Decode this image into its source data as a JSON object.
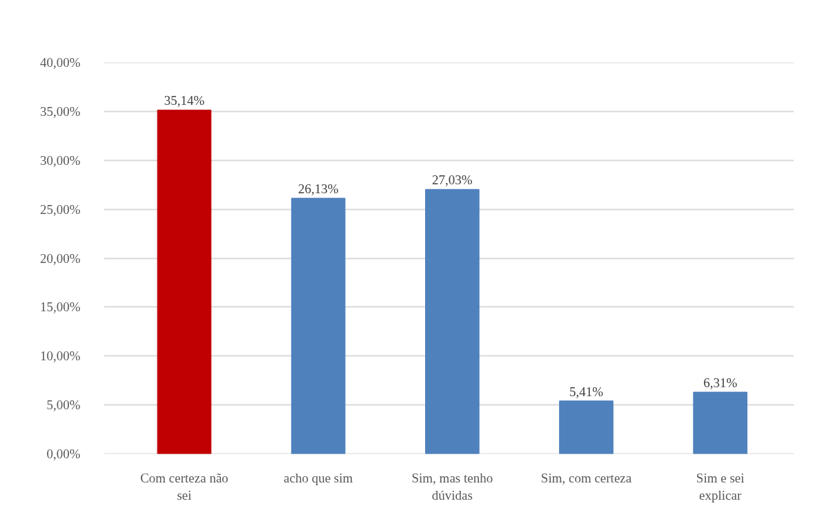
{
  "chart_data": {
    "type": "bar",
    "categories": [
      "Com certeza não sei",
      "acho que sim",
      "Sim, mas tenho dúvidas",
      "Sim, com certeza",
      "Sim e sei explicar"
    ],
    "values": [
      35.14,
      26.13,
      27.03,
      5.41,
      6.31
    ],
    "colors": [
      "#c00000",
      "#4f81bd",
      "#4f81bd",
      "#4f81bd",
      "#4f81bd"
    ],
    "value_labels": [
      "35,14%",
      "26,13%",
      "27,03%",
      "5,41%",
      "6,31%"
    ],
    "ylim": [
      0,
      40
    ],
    "yticks": [
      {
        "value": 0,
        "label": "0,00%"
      },
      {
        "value": 5,
        "label": "5,00%"
      },
      {
        "value": 10,
        "label": "10,00%"
      },
      {
        "value": 15,
        "label": "15,00%"
      },
      {
        "value": 20,
        "label": "20,00%"
      },
      {
        "value": 25,
        "label": "25,00%"
      },
      {
        "value": 30,
        "label": "30,00%"
      },
      {
        "value": 35,
        "label": "35,00%"
      },
      {
        "value": 40,
        "label": "40,00%"
      }
    ],
    "grid": "y"
  }
}
